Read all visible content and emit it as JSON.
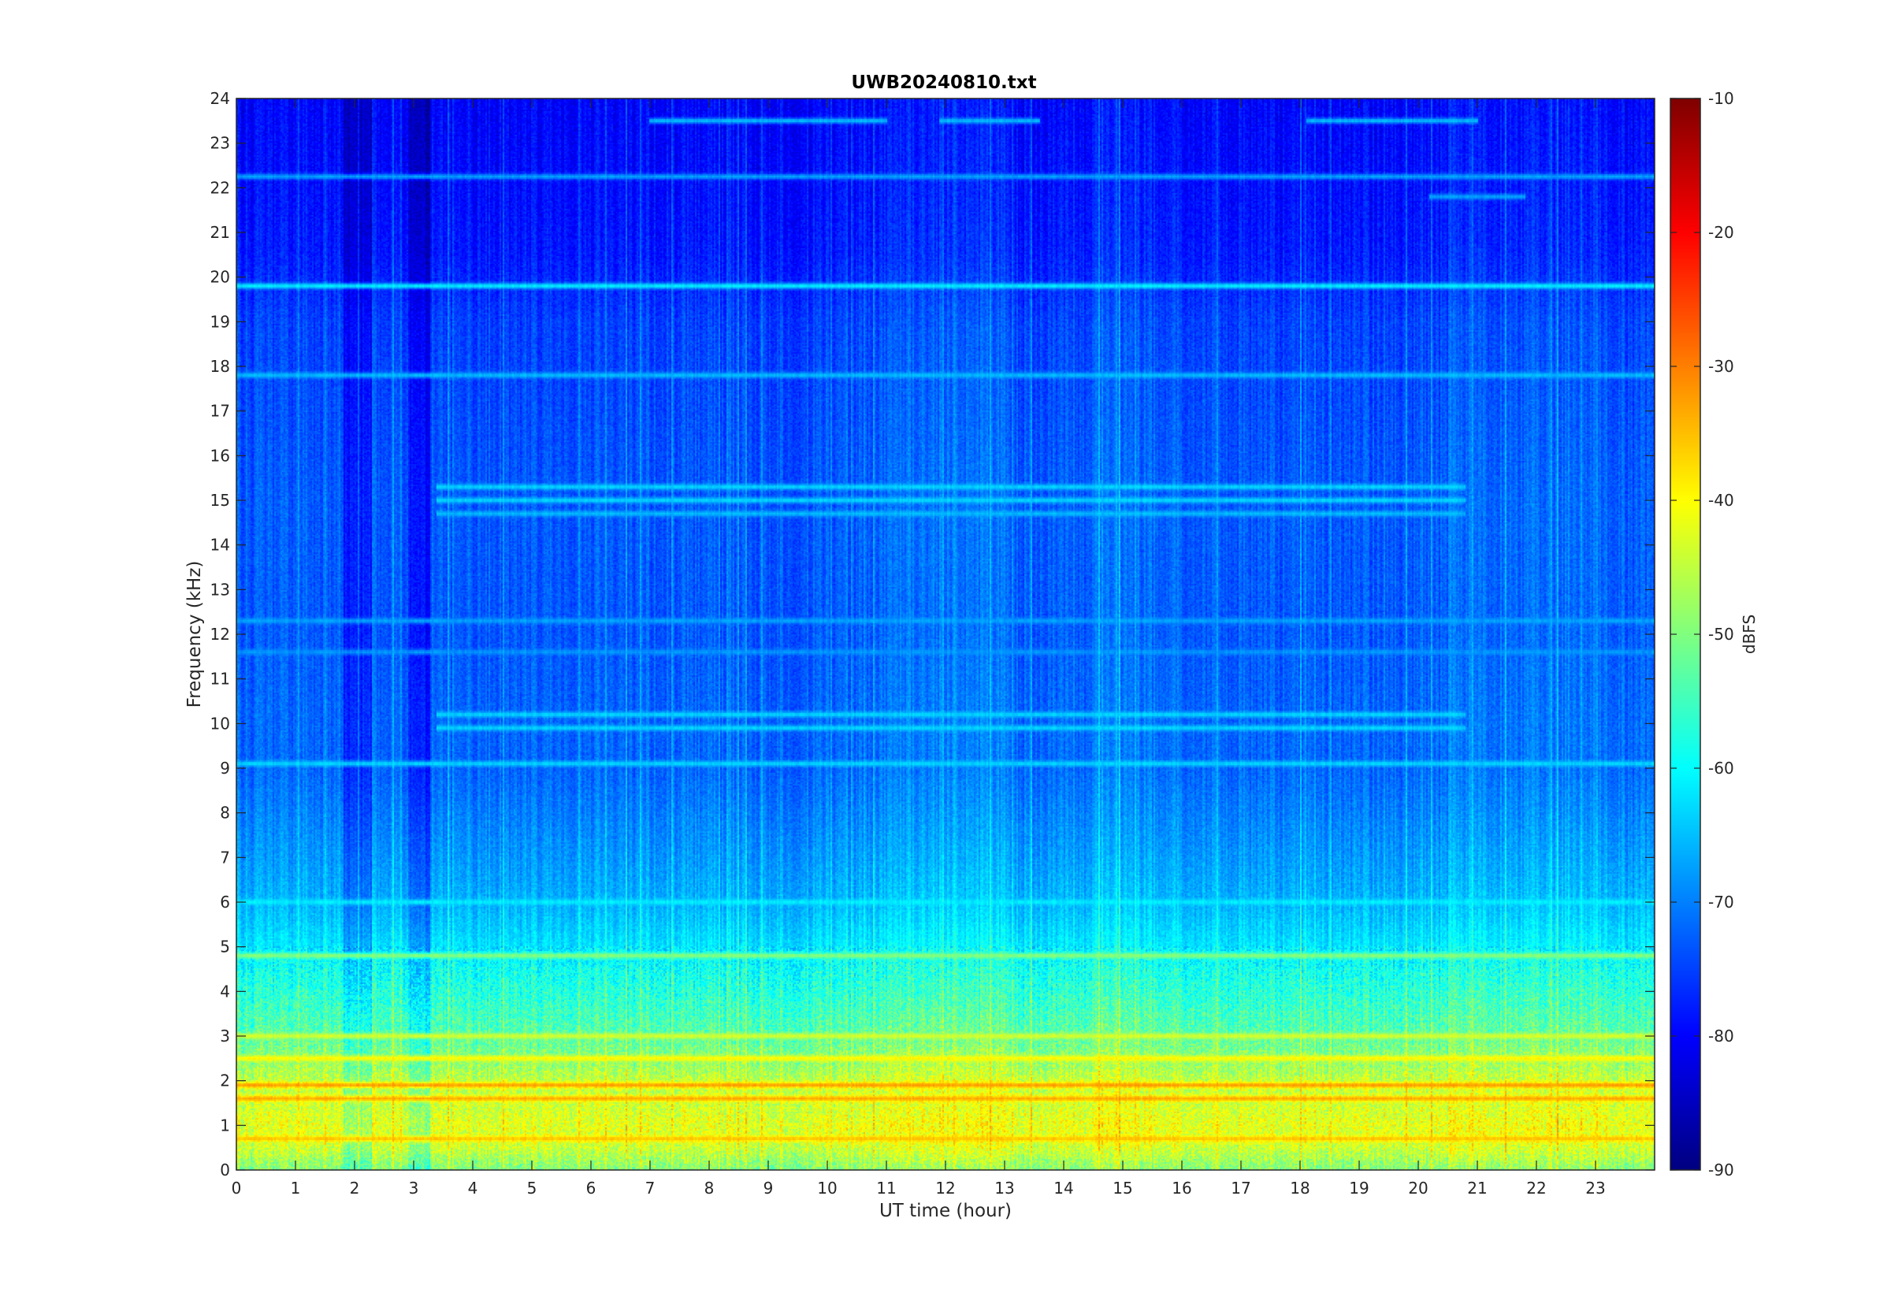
{
  "chart_data": {
    "type": "heatmap",
    "title": "UWB20240810.txt",
    "xlabel": "UT time (hour)",
    "ylabel": "Frequency (kHz)",
    "xlim": [
      0,
      24
    ],
    "ylim": [
      0,
      24
    ],
    "x_ticks": [
      0,
      1,
      2,
      3,
      4,
      5,
      6,
      7,
      8,
      9,
      10,
      11,
      12,
      13,
      14,
      15,
      16,
      17,
      18,
      19,
      20,
      21,
      22,
      23
    ],
    "y_ticks": [
      0,
      1,
      2,
      3,
      4,
      5,
      6,
      7,
      8,
      9,
      10,
      11,
      12,
      13,
      14,
      15,
      16,
      17,
      18,
      19,
      20,
      21,
      22,
      23,
      24
    ],
    "colorbar": {
      "label": "dBFS",
      "limits": [
        -90,
        -10
      ],
      "ticks": [
        -10,
        -20,
        -30,
        -40,
        -50,
        -60,
        -70,
        -80,
        -90
      ],
      "colormap": "jet"
    },
    "background_profile": [
      {
        "freq_khz": 0.0,
        "dbfs": -50
      },
      {
        "freq_khz": 0.5,
        "dbfs": -44
      },
      {
        "freq_khz": 1.0,
        "dbfs": -42
      },
      {
        "freq_khz": 1.5,
        "dbfs": -44
      },
      {
        "freq_khz": 2.0,
        "dbfs": -45
      },
      {
        "freq_khz": 2.5,
        "dbfs": -49
      },
      {
        "freq_khz": 3.0,
        "dbfs": -53
      },
      {
        "freq_khz": 3.5,
        "dbfs": -55
      },
      {
        "freq_khz": 4.0,
        "dbfs": -57
      },
      {
        "freq_khz": 4.5,
        "dbfs": -59
      },
      {
        "freq_khz": 5.0,
        "dbfs": -62
      },
      {
        "freq_khz": 6.0,
        "dbfs": -66
      },
      {
        "freq_khz": 7.0,
        "dbfs": -68
      },
      {
        "freq_khz": 8.0,
        "dbfs": -70
      },
      {
        "freq_khz": 9.0,
        "dbfs": -72
      },
      {
        "freq_khz": 10.0,
        "dbfs": -72
      },
      {
        "freq_khz": 12.0,
        "dbfs": -73
      },
      {
        "freq_khz": 15.0,
        "dbfs": -73
      },
      {
        "freq_khz": 17.0,
        "dbfs": -74
      },
      {
        "freq_khz": 19.0,
        "dbfs": -75
      },
      {
        "freq_khz": 20.5,
        "dbfs": -78
      },
      {
        "freq_khz": 22.0,
        "dbfs": -79
      },
      {
        "freq_khz": 24.0,
        "dbfs": -80
      }
    ],
    "spectral_lines": [
      {
        "freq_khz": 19.8,
        "dbfs": -62,
        "t_start": 0,
        "t_end": 24
      },
      {
        "freq_khz": 22.25,
        "dbfs": -68,
        "t_start": 0,
        "t_end": 24
      },
      {
        "freq_khz": 23.5,
        "dbfs": -66,
        "t_start": 7,
        "t_end": 11
      },
      {
        "freq_khz": 23.5,
        "dbfs": -66,
        "t_start": 11.9,
        "t_end": 13.6
      },
      {
        "freq_khz": 23.5,
        "dbfs": -66,
        "t_start": 18.1,
        "t_end": 21
      },
      {
        "freq_khz": 21.8,
        "dbfs": -68,
        "t_start": 20.2,
        "t_end": 21.8
      },
      {
        "freq_khz": 17.8,
        "dbfs": -66,
        "t_start": 0,
        "t_end": 24
      },
      {
        "freq_khz": 15.3,
        "dbfs": -64,
        "t_start": 3.4,
        "t_end": 20.8
      },
      {
        "freq_khz": 15.0,
        "dbfs": -64,
        "t_start": 3.4,
        "t_end": 20.8
      },
      {
        "freq_khz": 14.7,
        "dbfs": -66,
        "t_start": 3.4,
        "t_end": 20.8
      },
      {
        "freq_khz": 12.3,
        "dbfs": -68,
        "t_start": 0,
        "t_end": 24
      },
      {
        "freq_khz": 11.6,
        "dbfs": -69,
        "t_start": 0,
        "t_end": 24
      },
      {
        "freq_khz": 10.2,
        "dbfs": -64,
        "t_start": 3.4,
        "t_end": 20.8
      },
      {
        "freq_khz": 9.9,
        "dbfs": -64,
        "t_start": 3.4,
        "t_end": 20.8
      },
      {
        "freq_khz": 9.1,
        "dbfs": -64,
        "t_start": 0,
        "t_end": 24
      },
      {
        "freq_khz": 6.0,
        "dbfs": -62,
        "t_start": 0,
        "t_end": 24
      },
      {
        "freq_khz": 4.8,
        "dbfs": -50,
        "t_start": 0,
        "t_end": 24
      },
      {
        "freq_khz": 3.0,
        "dbfs": -44,
        "t_start": 0,
        "t_end": 24
      },
      {
        "freq_khz": 2.5,
        "dbfs": -40,
        "t_start": 0,
        "t_end": 24
      },
      {
        "freq_khz": 1.9,
        "dbfs": -33,
        "t_start": 0,
        "t_end": 24
      },
      {
        "freq_khz": 1.6,
        "dbfs": -34,
        "t_start": 0,
        "t_end": 24
      },
      {
        "freq_khz": 0.7,
        "dbfs": -36,
        "t_start": 0,
        "t_end": 24
      }
    ],
    "quiet_intervals": [
      {
        "t_start": 1.8,
        "t_end": 2.3,
        "depth_db": 5
      },
      {
        "t_start": 2.9,
        "t_end": 3.3,
        "depth_db": 6
      }
    ],
    "active_intervals": [
      {
        "t_start": 10.9,
        "t_end": 13.0,
        "boost_db": 4
      },
      {
        "t_start": 14.5,
        "t_end": 16.0,
        "boost_db": 3
      },
      {
        "t_start": 20.5,
        "t_end": 23.5,
        "boost_db": 3
      }
    ]
  }
}
